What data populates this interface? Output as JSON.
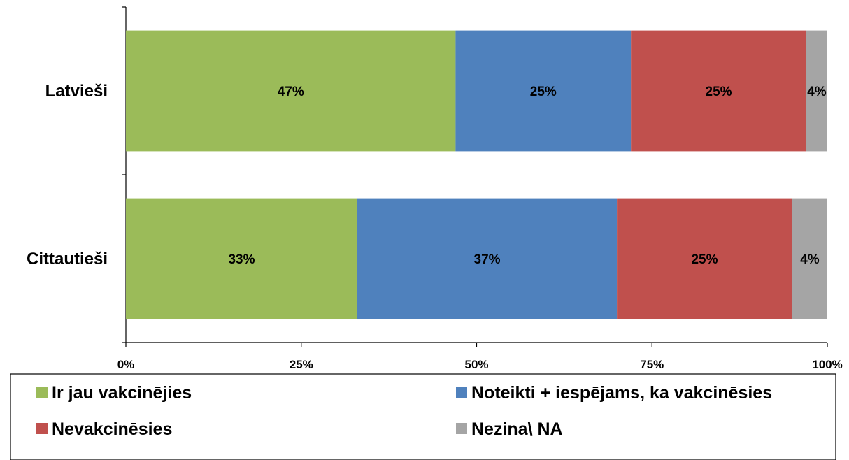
{
  "chart_data": {
    "type": "bar",
    "orientation": "horizontal",
    "stacked": true,
    "categories": [
      "Latvieši",
      "Cittautieši"
    ],
    "series": [
      {
        "name": "Ir jau vakcinējies",
        "values": [
          47,
          33
        ],
        "color": "#9BBB59",
        "labels": [
          "47%",
          "33%"
        ]
      },
      {
        "name": "Noteikti + iespējams, ka vakcinēsies",
        "values": [
          25,
          37
        ],
        "color": "#4F81BD",
        "labels": [
          "25%",
          "37%"
        ]
      },
      {
        "name": "Nevakcinēsies",
        "values": [
          25,
          25
        ],
        "color": "#C0504D",
        "labels": [
          "25%",
          "25%"
        ]
      },
      {
        "name": "Nezina\\ NA",
        "values": [
          4,
          4
        ],
        "color": "#A5A5A5",
        "labels": [
          "4%",
          "4%"
        ]
      }
    ],
    "xlim": [
      0,
      100
    ],
    "xticks": [
      "0%",
      "25%",
      "50%",
      "75%",
      "100%"
    ],
    "legend_position": "bottom",
    "grid": false
  }
}
